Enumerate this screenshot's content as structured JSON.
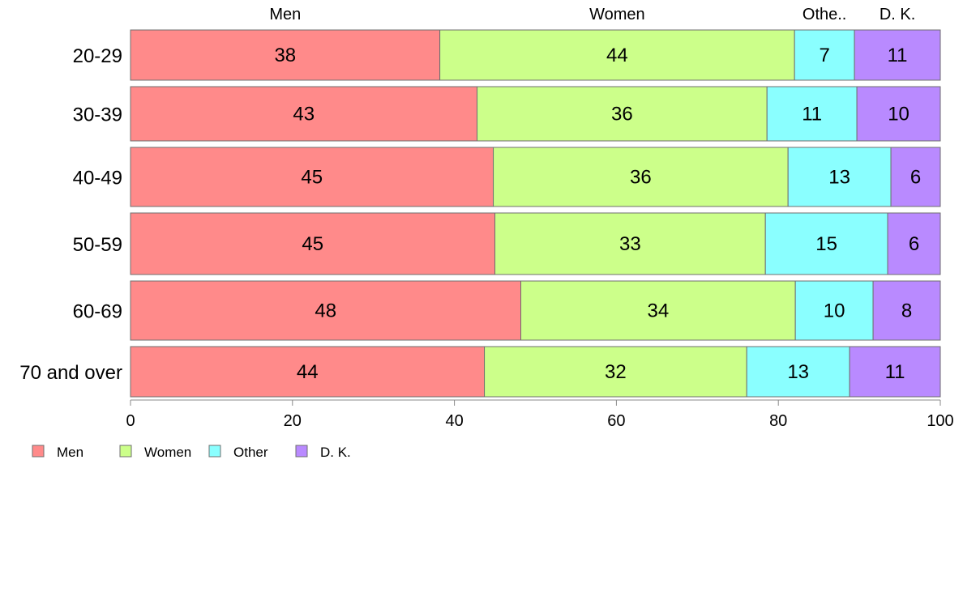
{
  "chart_data": {
    "type": "bar",
    "orientation": "horizontal",
    "stacked": true,
    "title": "",
    "xlabel": "",
    "ylabel": "",
    "xlim": [
      0,
      100
    ],
    "x_ticks": [
      "0",
      "20",
      "40",
      "60",
      "80",
      "100"
    ],
    "categories": [
      "20-29",
      "30-39",
      "40-49",
      "50-59",
      "60-69",
      "70 and over"
    ],
    "series": [
      {
        "name": "Men",
        "color": "#FF8A8A",
        "values": [
          38,
          43,
          45,
          45,
          48,
          44
        ],
        "widths": [
          38.2,
          42.8,
          44.8,
          45.0,
          48.2,
          43.7
        ]
      },
      {
        "name": "Women",
        "color": "#CCFF8A",
        "values": [
          44,
          36,
          36,
          33,
          34,
          32
        ],
        "widths": [
          43.8,
          35.8,
          36.4,
          33.4,
          33.9,
          32.4
        ]
      },
      {
        "name": "Other",
        "color": "#8AFFFF",
        "values": [
          7,
          11,
          13,
          15,
          10,
          13
        ],
        "widths": [
          7.4,
          11.1,
          12.7,
          15.1,
          9.6,
          12.7
        ]
      },
      {
        "name": "D. K.",
        "color": "#B98AFF",
        "values": [
          11,
          10,
          6,
          6,
          8,
          11
        ],
        "widths": [
          10.6,
          10.3,
          6.1,
          6.5,
          8.3,
          11.2
        ]
      }
    ],
    "top_labels": [
      "Men",
      "Women",
      "Othe..",
      "D. K."
    ],
    "legend": {
      "position": "bottom-left",
      "items": [
        "Men",
        "Women",
        "Other",
        "D. K."
      ]
    }
  }
}
